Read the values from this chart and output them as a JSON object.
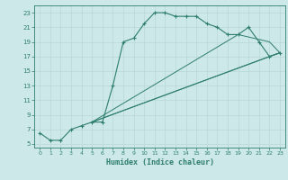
{
  "title": "",
  "xlabel": "Humidex (Indice chaleur)",
  "bg_color": "#cce8e8",
  "line_color": "#2e7d6e",
  "grid_major_color": "#b8d8d8",
  "grid_minor_color": "#d4e8e8",
  "xlim": [
    -0.5,
    23.5
  ],
  "ylim": [
    4.5,
    24
  ],
  "xticks": [
    0,
    1,
    2,
    3,
    4,
    5,
    6,
    7,
    8,
    9,
    10,
    11,
    12,
    13,
    14,
    15,
    16,
    17,
    18,
    19,
    20,
    21,
    22,
    23
  ],
  "yticks": [
    5,
    7,
    9,
    11,
    13,
    15,
    17,
    19,
    21,
    23
  ],
  "main_curve": {
    "x": [
      0,
      1,
      2,
      3,
      4,
      5,
      6,
      7,
      8,
      9,
      10,
      11,
      12,
      13,
      14,
      15,
      16,
      17,
      18,
      19,
      20,
      21,
      22,
      23
    ],
    "y": [
      6.5,
      5.5,
      5.5,
      7.0,
      7.5,
      8.0,
      8.0,
      13.0,
      19.0,
      19.5,
      21.5,
      23.0,
      23.0,
      22.5,
      22.5,
      22.5,
      21.5,
      21.0,
      20.0,
      20.0,
      21.0,
      19.0,
      17.0,
      17.5
    ]
  },
  "straight_lines": [
    {
      "x": [
        5,
        19,
        22,
        23
      ],
      "y": [
        8,
        20,
        19,
        17.5
      ]
    },
    {
      "x": [
        5,
        22,
        23
      ],
      "y": [
        8,
        17,
        17.5
      ]
    },
    {
      "x": [
        5,
        23
      ],
      "y": [
        8,
        17.5
      ]
    }
  ]
}
